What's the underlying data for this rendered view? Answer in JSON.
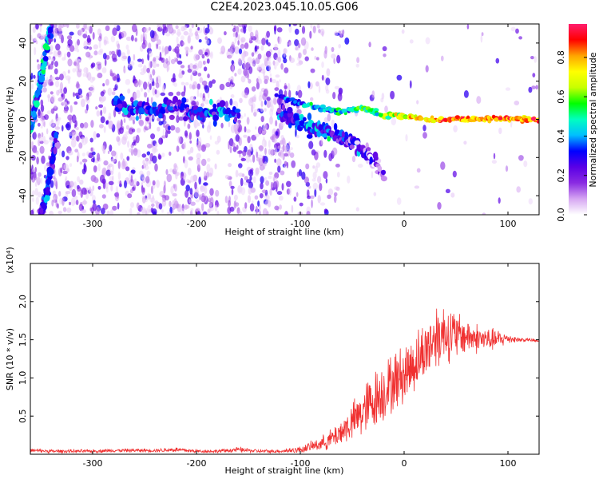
{
  "title": "C2E4.2023.045.10.05.G06",
  "chart_data": [
    {
      "type": "heatmap",
      "title": "C2E4.2023.045.10.05.G06",
      "xlabel": "Height of straight line (km)",
      "ylabel": "Frequency (Hz)",
      "xlim": [
        -360,
        130
      ],
      "ylim": [
        -50,
        50
      ],
      "xticks": [
        -300,
        -200,
        -100,
        0,
        100
      ],
      "yticks": [
        -40,
        -20,
        0,
        20,
        40
      ],
      "colorbar": {
        "label": "Normalized spectral amplitude",
        "range": [
          0.0,
          0.97
        ],
        "ticks": [
          0.0,
          0.2,
          0.4,
          0.6,
          0.8
        ],
        "colors": [
          "#ffffff",
          "#d6a6f2",
          "#8a2be2",
          "#5a00e6",
          "#0000ff",
          "#00bfff",
          "#00ffc0",
          "#00ff00",
          "#c8ff00",
          "#ffff00",
          "#ffa500",
          "#ff0000",
          "#ff1e6e"
        ]
      },
      "features": [
        {
          "name": "carrier",
          "x": [
            -120,
            -100,
            -80,
            -60,
            -40,
            -20,
            0,
            20,
            40,
            60,
            80,
            100,
            130
          ],
          "freq": [
            12,
            8,
            6,
            4,
            6,
            2,
            2,
            0,
            0,
            0,
            0,
            0,
            0
          ],
          "amplitude": [
            0.3,
            0.35,
            0.4,
            0.45,
            0.5,
            0.6,
            0.7,
            0.8,
            0.85,
            0.85,
            0.85,
            0.85,
            0.85
          ]
        },
        {
          "name": "lower-branch",
          "x": [
            -120,
            -100,
            -90,
            -80,
            -70,
            -60,
            -50,
            -40,
            -30,
            -20
          ],
          "freq": [
            3,
            -2,
            -4,
            -6,
            -8,
            -10,
            -12,
            -16,
            -22,
            -28
          ],
          "amplitude": [
            0.25,
            0.35,
            0.4,
            0.35,
            0.3,
            0.3,
            0.25,
            0.2,
            0.15,
            0.1
          ]
        },
        {
          "name": "scatter-band",
          "x": [
            -280,
            -260,
            -240,
            -220,
            -200,
            -180,
            -160
          ],
          "freq": [
            8,
            6,
            5,
            7,
            3,
            4,
            2
          ],
          "amplitude": [
            0.3,
            0.35,
            0.3,
            0.25,
            0.3,
            0.35,
            0.3
          ]
        },
        {
          "name": "diagonal-upper",
          "x": [
            -360,
            -350,
            -345,
            -340
          ],
          "freq": [
            -5,
            20,
            35,
            50
          ],
          "amplitude": [
            0.3,
            0.4,
            0.4,
            0.3
          ]
        },
        {
          "name": "diagonal-lower",
          "x": [
            -350,
            -345,
            -340,
            -335
          ],
          "freq": [
            -50,
            -40,
            -25,
            -10
          ],
          "amplitude": [
            0.25,
            0.3,
            0.3,
            0.25
          ]
        }
      ]
    },
    {
      "type": "line",
      "xlabel": "Height of straight line (km)",
      "ylabel": "SNR (10 * v/v)",
      "multiplier": "(x10⁴)",
      "xlim": [
        -360,
        130
      ],
      "ylim": [
        0,
        2.5
      ],
      "xticks": [
        -300,
        -200,
        -100,
        0,
        100
      ],
      "yticks": [
        0.5,
        1.0,
        1.5,
        2.0
      ],
      "color": "#f03030",
      "x": [
        -360,
        -340,
        -320,
        -300,
        -280,
        -260,
        -240,
        -220,
        -200,
        -180,
        -160,
        -140,
        -120,
        -100,
        -90,
        -80,
        -70,
        -60,
        -50,
        -40,
        -30,
        -20,
        -10,
        0,
        10,
        20,
        30,
        40,
        50,
        60,
        70,
        80,
        90,
        100,
        110,
        120,
        130
      ],
      "y": [
        0.05,
        0.04,
        0.04,
        0.04,
        0.05,
        0.05,
        0.05,
        0.06,
        0.04,
        0.04,
        0.06,
        0.04,
        0.04,
        0.06,
        0.1,
        0.14,
        0.2,
        0.3,
        0.42,
        0.55,
        0.7,
        0.82,
        0.95,
        1.05,
        1.2,
        1.35,
        1.55,
        1.6,
        1.55,
        1.55,
        1.52,
        1.5,
        1.5,
        1.52,
        1.5,
        1.5,
        1.48
      ],
      "noise": [
        0.02,
        0.02,
        0.02,
        0.02,
        0.02,
        0.02,
        0.02,
        0.03,
        0.02,
        0.02,
        0.03,
        0.02,
        0.02,
        0.04,
        0.06,
        0.08,
        0.12,
        0.16,
        0.22,
        0.3,
        0.35,
        0.35,
        0.35,
        0.35,
        0.35,
        0.35,
        0.4,
        0.35,
        0.3,
        0.2,
        0.18,
        0.14,
        0.12,
        0.06,
        0.03,
        0.02,
        0.02
      ]
    }
  ]
}
